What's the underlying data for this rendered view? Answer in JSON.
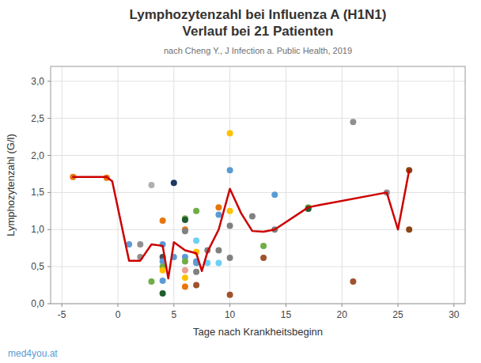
{
  "chart_data": {
    "type": "scatter",
    "title": [
      "Lymphozytenzahl bei Influenza A (H1N1)",
      "Verlauf bei 21 Patienten"
    ],
    "subtitle": "nach Cheng Y., J Infection a. Public Health, 2019",
    "x_label": "Tage nach Krankheitsbeginn",
    "y_label": "Lymphozytenzahl (G/l)",
    "annotations": [
      "med4you.at"
    ],
    "xlim": [
      -6,
      31
    ],
    "ylim": [
      0,
      3.2
    ],
    "xticks": [
      -5,
      0,
      5,
      10,
      15,
      20,
      25,
      30
    ],
    "yticks": [
      {
        "value": 0.0,
        "label": "0,0"
      },
      {
        "value": 0.5,
        "label": "0,5"
      },
      {
        "value": 1.0,
        "label": "1,0"
      },
      {
        "value": 1.5,
        "label": "1,5"
      },
      {
        "value": 2.0,
        "label": "2,0"
      },
      {
        "value": 2.5,
        "label": "2,5"
      },
      {
        "value": 3.0,
        "label": "3,0"
      }
    ],
    "grid": true,
    "series": [
      {
        "type": "scatter",
        "marker": "circle",
        "x": [
          -4,
          -1,
          1,
          2,
          2,
          3,
          3,
          4,
          4,
          4,
          4,
          4,
          4,
          4,
          4,
          5,
          5,
          6,
          6,
          6,
          6,
          6,
          6,
          6,
          6,
          6,
          7,
          7,
          7,
          7,
          7,
          7,
          7,
          8,
          8,
          9,
          9,
          9,
          9,
          10,
          10,
          10,
          10,
          10,
          10,
          12,
          13,
          13,
          14,
          14,
          17,
          17,
          21,
          21,
          24,
          26,
          26
        ],
        "values": [
          1.71,
          1.7,
          0.8,
          0.8,
          0.63,
          0.3,
          1.6,
          0.8,
          0.63,
          0.57,
          0.5,
          0.45,
          0.31,
          1.12,
          0.14,
          1.63,
          0.63,
          1.15,
          1.13,
          1.0,
          0.98,
          0.63,
          0.57,
          0.45,
          0.35,
          0.23,
          1.25,
          0.85,
          0.7,
          0.57,
          0.55,
          0.43,
          0.25,
          0.72,
          0.55,
          1.3,
          1.2,
          0.72,
          0.55,
          2.3,
          1.8,
          1.25,
          1.05,
          0.62,
          0.12,
          1.18,
          0.78,
          0.62,
          1.47,
          1.0,
          1.3,
          1.28,
          2.45,
          0.3,
          1.5,
          1.8,
          1.0
        ],
        "colors": [
          "#E8760A",
          "#E8760A",
          "#5B9BD5",
          "#909090",
          "#909090",
          "#70AD47",
          "#B0B0B0",
          "#5B9BD5",
          "#505050",
          "#5B9BD5",
          "#70AD47",
          "#FFC000",
          "#5B9BD5",
          "#E8760A",
          "#1F5C2E",
          "#203864",
          "#5B9BD5",
          "#70AD47",
          "#1F5C2E",
          "#E8760A",
          "#808080",
          "#5B9BD5",
          "#70AD47",
          "#E8A090",
          "#FFC000",
          "#E8760A",
          "#70AD47",
          "#6DCFF6",
          "#FFC000",
          "#5B9BD5",
          "#5B9BD5",
          "#808080",
          "#A0522D",
          "#808080",
          "#6DCFF6",
          "#E8760A",
          "#5B9BD5",
          "#808080",
          "#6DCFF6",
          "#FFC000",
          "#5B9BD5",
          "#FFC000",
          "#808080",
          "#808080",
          "#A0522D",
          "#808080",
          "#70AD47",
          "#A0522D",
          "#5B9BD5",
          "#808080",
          "#70AD47",
          "#1F5C2E",
          "#909090",
          "#A0522D",
          "#909090",
          "#8B4513",
          "#8B4513"
        ]
      },
      {
        "type": "line",
        "color": "#CC0000",
        "line_style": "solid",
        "x": [
          -4,
          -1,
          -0.5,
          1,
          2,
          3,
          4,
          4.5,
          5,
          6,
          7,
          7.5,
          8,
          9,
          10,
          11,
          12,
          13,
          14,
          17,
          18,
          24,
          25,
          26
        ],
        "values": [
          1.71,
          1.71,
          1.65,
          0.58,
          0.58,
          0.8,
          0.78,
          0.34,
          0.83,
          0.72,
          0.68,
          0.44,
          0.7,
          1.0,
          1.55,
          1.22,
          0.98,
          0.97,
          1.0,
          1.3,
          1.33,
          1.5,
          1.0,
          1.8
        ]
      }
    ]
  }
}
